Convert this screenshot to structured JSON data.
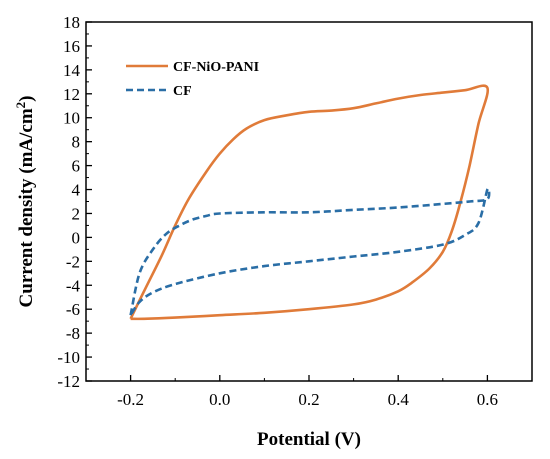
{
  "chart_data": {
    "type": "line",
    "xlabel": "Potential (V)",
    "ylabel_main": "Current density (mA/cm",
    "ylabel_sup": "2",
    "ylabel_close": ")",
    "xlim": [
      -0.3,
      0.7
    ],
    "ylim": [
      -12,
      18
    ],
    "x_ticks": [
      -0.2,
      0.0,
      0.2,
      0.4,
      0.6
    ],
    "x_tick_labels": [
      "-0.2",
      "0.0",
      "0.2",
      "0.4",
      "0.6"
    ],
    "y_ticks": [
      -12,
      -10,
      -8,
      -6,
      -4,
      -2,
      0,
      2,
      4,
      6,
      8,
      10,
      12,
      14,
      16,
      18
    ],
    "y_tick_labels": [
      "-12",
      "-10",
      "-8",
      "-6",
      "-4",
      "-2",
      "0",
      "2",
      "4",
      "6",
      "8",
      "10",
      "12",
      "14",
      "16",
      "18"
    ],
    "grid": false,
    "legend_position": "top-left",
    "series": [
      {
        "name": "CF-NiO-PANI",
        "color": "#E07B39",
        "dash": "solid",
        "x": [
          -0.2,
          -0.17,
          -0.13,
          -0.1,
          -0.07,
          -0.03,
          0.0,
          0.03,
          0.06,
          0.1,
          0.15,
          0.2,
          0.25,
          0.3,
          0.35,
          0.4,
          0.45,
          0.5,
          0.55,
          0.6,
          0.58,
          0.56,
          0.54,
          0.52,
          0.5,
          0.47,
          0.43,
          0.4,
          0.35,
          0.3,
          0.2,
          0.1,
          0.0,
          -0.1,
          -0.17,
          -0.2
        ],
        "y": [
          -6.8,
          -4.5,
          -1.5,
          1.0,
          3.2,
          5.5,
          7.0,
          8.2,
          9.1,
          9.8,
          10.2,
          10.5,
          10.6,
          10.8,
          11.2,
          11.6,
          11.9,
          12.1,
          12.3,
          12.5,
          9.5,
          6.0,
          3.0,
          0.5,
          -1.2,
          -2.6,
          -3.8,
          -4.5,
          -5.2,
          -5.6,
          -6.0,
          -6.3,
          -6.5,
          -6.7,
          -6.8,
          -6.8
        ]
      },
      {
        "name": "CF",
        "color": "#2A6EA6",
        "dash": "dashed",
        "x": [
          -0.2,
          -0.18,
          -0.15,
          -0.12,
          -0.09,
          -0.06,
          -0.03,
          0.0,
          0.1,
          0.2,
          0.3,
          0.4,
          0.5,
          0.56,
          0.6,
          0.6,
          0.58,
          0.55,
          0.5,
          0.4,
          0.3,
          0.2,
          0.1,
          0.0,
          -0.1,
          -0.15,
          -0.18,
          -0.2
        ],
        "y": [
          -6.5,
          -3.0,
          -1.0,
          0.3,
          1.0,
          1.5,
          1.8,
          2.0,
          2.1,
          2.1,
          2.3,
          2.5,
          2.8,
          3.0,
          3.2,
          4.0,
          1.2,
          0.2,
          -0.6,
          -1.2,
          -1.6,
          -2.0,
          -2.4,
          -3.0,
          -3.9,
          -4.6,
          -5.4,
          -6.5
        ]
      }
    ]
  }
}
